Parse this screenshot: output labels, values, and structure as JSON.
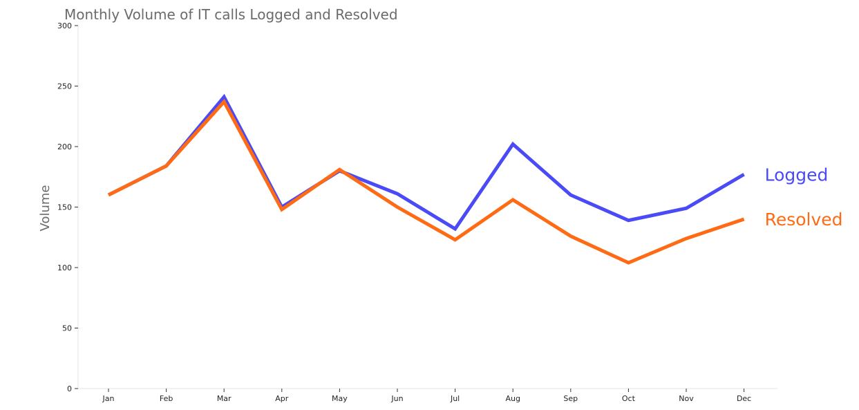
{
  "chart_data": {
    "type": "line",
    "title": "Monthly Volume of IT calls Logged and Resolved",
    "xlabel": "",
    "ylabel": "Volume",
    "categories": [
      "Jan",
      "Feb",
      "Mar",
      "Apr",
      "May",
      "Jun",
      "Jul",
      "Aug",
      "Sep",
      "Oct",
      "Nov",
      "Dec"
    ],
    "ylim": [
      0,
      300
    ],
    "yticks": [
      0,
      50,
      100,
      150,
      200,
      250,
      300
    ],
    "grid": false,
    "legend": "inline labels at right end of lines",
    "series": [
      {
        "name": "Logged",
        "color": "#4a4af6",
        "values": [
          160,
          184,
          241,
          150,
          180,
          161,
          132,
          202,
          160,
          139,
          149,
          177
        ]
      },
      {
        "name": "Resolved",
        "color": "#ff6a14",
        "values": [
          160,
          184,
          237,
          148,
          181,
          150,
          123,
          156,
          126,
          104,
          124,
          140
        ]
      }
    ]
  }
}
